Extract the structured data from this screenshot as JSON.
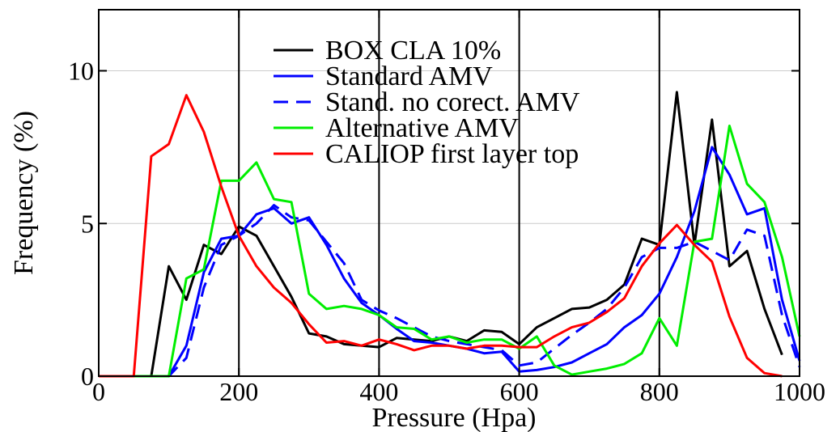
{
  "chart_data": {
    "type": "line",
    "title": "",
    "xlabel": "Pressure (Hpa)",
    "ylabel": "Frequency (%)",
    "xlim": [
      0,
      1000
    ],
    "ylim": [
      0,
      12
    ],
    "xticks": [
      0,
      200,
      400,
      600,
      800,
      1000
    ],
    "yticks": [
      0,
      5,
      10
    ],
    "xtick_labels": [
      "0",
      "200",
      "400",
      "600",
      "800",
      "1000"
    ],
    "ytick_labels": [
      "0",
      "5",
      "10"
    ],
    "grid": "vertical lines at 200, 400, 600, 800 and horizontal light lines at 5 and 10",
    "vlines": [
      200,
      400,
      600,
      800
    ],
    "legend_position": "top-center",
    "series": [
      {
        "name": "BOX CLA 10%",
        "color": "#000000",
        "dash": false,
        "x": [
          0,
          75,
          100,
          125,
          150,
          175,
          200,
          225,
          250,
          275,
          300,
          325,
          350,
          375,
          400,
          425,
          450,
          475,
          500,
          525,
          550,
          575,
          600,
          625,
          650,
          675,
          700,
          725,
          750,
          775,
          800,
          825,
          850,
          875,
          900,
          925,
          950,
          975
        ],
        "y": [
          0,
          0,
          3.6,
          2.5,
          4.3,
          4.0,
          4.9,
          4.6,
          3.6,
          2.6,
          1.4,
          1.3,
          1.05,
          1.0,
          0.95,
          1.25,
          1.2,
          1.15,
          1.3,
          1.15,
          1.5,
          1.45,
          1.05,
          1.6,
          1.9,
          2.2,
          2.25,
          2.5,
          3.0,
          4.5,
          4.3,
          9.3,
          4.3,
          8.4,
          3.6,
          4.1,
          2.2,
          0.7
        ]
      },
      {
        "name": "Standard AMV",
        "color": "#0000ff",
        "dash": false,
        "x": [
          0,
          100,
          125,
          150,
          175,
          200,
          225,
          250,
          275,
          300,
          325,
          350,
          375,
          400,
          425,
          450,
          475,
          500,
          525,
          550,
          575,
          600,
          625,
          650,
          675,
          700,
          725,
          750,
          775,
          800,
          825,
          850,
          875,
          900,
          925,
          950,
          975,
          1000
        ],
        "y": [
          0,
          0,
          1.0,
          3.4,
          4.5,
          4.6,
          5.3,
          5.5,
          5.0,
          5.2,
          4.3,
          3.2,
          2.4,
          2.0,
          1.55,
          1.15,
          1.1,
          1.0,
          0.9,
          0.75,
          0.8,
          0.15,
          0.2,
          0.3,
          0.45,
          0.75,
          1.05,
          1.6,
          2.0,
          2.7,
          3.9,
          5.4,
          7.5,
          6.6,
          5.3,
          5.5,
          2.5,
          0.5
        ]
      },
      {
        "name": "Stand. no corect. AMV",
        "color": "#0000ff",
        "dash": true,
        "x": [
          0,
          100,
          125,
          150,
          175,
          200,
          225,
          250,
          275,
          300,
          325,
          350,
          375,
          400,
          425,
          450,
          475,
          500,
          525,
          550,
          575,
          600,
          625,
          650,
          675,
          700,
          725,
          750,
          775,
          800,
          825,
          850,
          875,
          900,
          925,
          950,
          975,
          1000
        ],
        "y": [
          0,
          0,
          0.6,
          2.9,
          4.3,
          4.6,
          5.0,
          5.6,
          5.2,
          5.1,
          4.4,
          3.7,
          2.5,
          2.15,
          1.9,
          1.6,
          1.3,
          1.15,
          1.05,
          0.95,
          0.85,
          0.35,
          0.45,
          0.9,
          1.35,
          1.75,
          2.2,
          2.9,
          3.9,
          4.2,
          4.2,
          4.4,
          4.1,
          3.8,
          4.8,
          4.6,
          2.0,
          0.3
        ]
      },
      {
        "name": "Alternative AMV",
        "color": "#00ee00",
        "dash": false,
        "x": [
          0,
          100,
          125,
          150,
          175,
          200,
          225,
          250,
          275,
          300,
          325,
          350,
          375,
          400,
          425,
          450,
          475,
          500,
          525,
          550,
          575,
          600,
          625,
          650,
          675,
          700,
          725,
          750,
          775,
          800,
          825,
          850,
          875,
          900,
          925,
          950,
          975,
          1000
        ],
        "y": [
          0,
          0,
          3.2,
          3.5,
          6.4,
          6.4,
          7.0,
          5.8,
          5.7,
          2.7,
          2.2,
          2.3,
          2.2,
          2.0,
          1.6,
          1.55,
          1.2,
          1.3,
          1.1,
          1.2,
          1.2,
          0.9,
          1.3,
          0.35,
          0.05,
          0.15,
          0.25,
          0.4,
          0.75,
          1.9,
          1.0,
          4.4,
          4.5,
          8.2,
          6.3,
          5.7,
          3.9,
          1.3
        ]
      },
      {
        "name": "CALIOP first layer top",
        "color": "#ff0000",
        "dash": false,
        "x": [
          0,
          50,
          75,
          100,
          125,
          150,
          175,
          200,
          225,
          250,
          275,
          300,
          325,
          350,
          375,
          400,
          425,
          450,
          475,
          500,
          525,
          550,
          575,
          600,
          625,
          650,
          675,
          700,
          725,
          750,
          775,
          800,
          825,
          850,
          875,
          900,
          925,
          950,
          975
        ],
        "y": [
          0,
          0,
          7.2,
          7.6,
          9.2,
          8.0,
          6.2,
          4.6,
          3.6,
          2.9,
          2.4,
          1.7,
          1.1,
          1.15,
          1.0,
          1.2,
          1.05,
          0.85,
          1.0,
          1.0,
          0.9,
          1.0,
          1.0,
          0.95,
          0.95,
          1.3,
          1.6,
          1.75,
          2.1,
          2.55,
          3.6,
          4.35,
          4.95,
          4.3,
          3.75,
          1.95,
          0.6,
          0.1,
          0
        ]
      }
    ]
  }
}
